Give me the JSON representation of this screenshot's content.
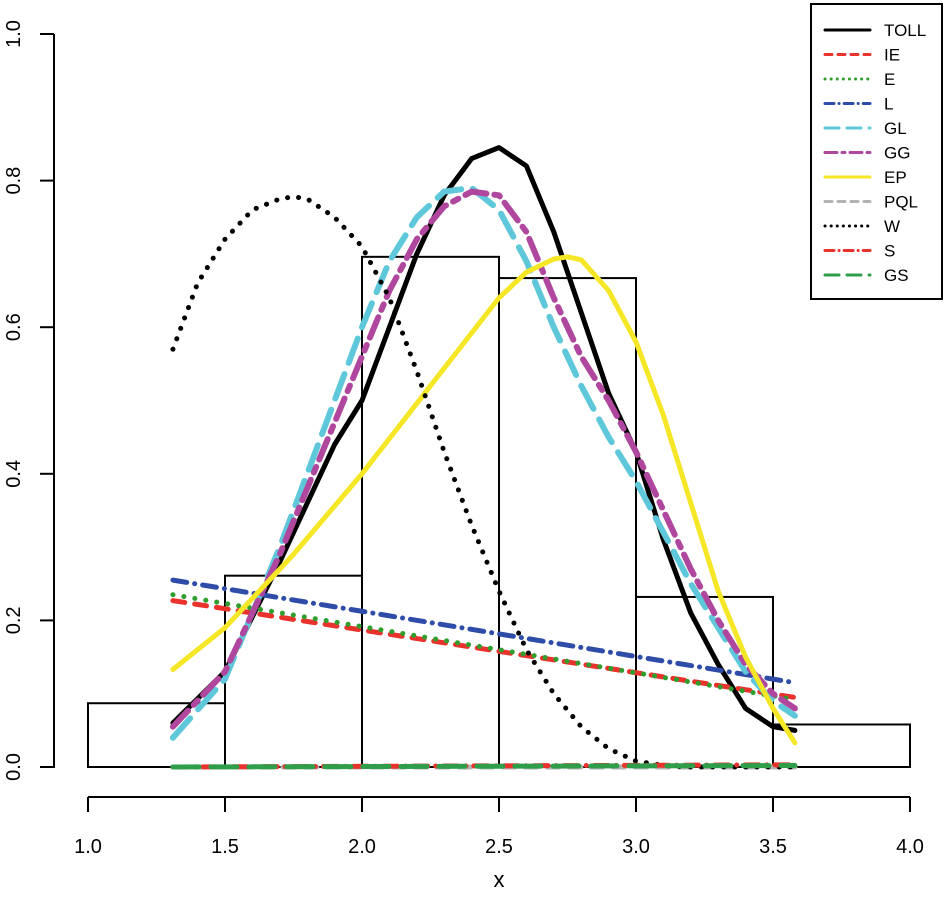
{
  "chart_data": {
    "type": "line",
    "title": "",
    "xlabel": "x",
    "ylabel": "",
    "xlim": [
      1.0,
      4.0
    ],
    "ylim": [
      0.0,
      1.0
    ],
    "x_ticks": [
      "1.0",
      "1.5",
      "2.0",
      "2.5",
      "3.0",
      "3.5",
      "4.0"
    ],
    "y_ticks": [
      "0.0",
      "0.2",
      "0.4",
      "0.6",
      "0.8",
      "1.0"
    ],
    "grid": false,
    "legend_position": "top-right",
    "histogram": {
      "bins": [
        [
          1.0,
          1.5
        ],
        [
          1.5,
          2.0
        ],
        [
          2.0,
          2.5
        ],
        [
          2.5,
          3.0
        ],
        [
          3.0,
          3.5
        ],
        [
          3.5,
          4.0
        ]
      ],
      "values": [
        0.087,
        0.261,
        0.696,
        0.667,
        0.232,
        0.058
      ]
    },
    "series": [
      {
        "name": "TOLL",
        "color": "#000000",
        "dash": "solid",
        "width": 5,
        "x": [
          1.31,
          1.5,
          1.7,
          1.9,
          2.0,
          2.1,
          2.2,
          2.3,
          2.4,
          2.5,
          2.6,
          2.7,
          2.8,
          2.9,
          3.0,
          3.1,
          3.2,
          3.3,
          3.4,
          3.5,
          3.58
        ],
        "y": [
          0.06,
          0.13,
          0.28,
          0.44,
          0.5,
          0.6,
          0.7,
          0.78,
          0.83,
          0.845,
          0.82,
          0.73,
          0.62,
          0.51,
          0.43,
          0.31,
          0.21,
          0.14,
          0.08,
          0.055,
          0.05
        ]
      },
      {
        "name": "IE",
        "color": "#e8322b",
        "dash": "dashed",
        "width": 5,
        "x": [
          1.31,
          3.58
        ],
        "y": [
          0.227,
          0.095
        ]
      },
      {
        "name": "E",
        "color": "#2f9e2f",
        "dash": "dotted",
        "width": 5,
        "x": [
          1.31,
          3.58
        ],
        "y": [
          0.235,
          0.092
        ]
      },
      {
        "name": "L",
        "color": "#2f4da8",
        "dash": "dashdot",
        "width": 5,
        "x": [
          1.31,
          3.58
        ],
        "y": [
          0.255,
          0.115
        ]
      },
      {
        "name": "GL",
        "color": "#5ec8da",
        "dash": "longdash",
        "width": 6,
        "x": [
          1.31,
          1.5,
          1.7,
          1.9,
          2.0,
          2.1,
          2.2,
          2.3,
          2.4,
          2.5,
          2.6,
          2.7,
          2.8,
          2.9,
          3.0,
          3.1,
          3.2,
          3.3,
          3.4,
          3.5,
          3.58
        ],
        "y": [
          0.04,
          0.12,
          0.3,
          0.5,
          0.6,
          0.69,
          0.75,
          0.785,
          0.79,
          0.76,
          0.69,
          0.6,
          0.52,
          0.45,
          0.39,
          0.32,
          0.25,
          0.19,
          0.13,
          0.09,
          0.07
        ]
      },
      {
        "name": "GG",
        "color": "#b0479e",
        "dash": "twodash",
        "width": 6,
        "x": [
          1.31,
          1.5,
          1.7,
          1.9,
          2.0,
          2.1,
          2.2,
          2.3,
          2.4,
          2.5,
          2.6,
          2.7,
          2.8,
          2.9,
          3.0,
          3.1,
          3.2,
          3.3,
          3.4,
          3.5,
          3.58
        ],
        "y": [
          0.055,
          0.13,
          0.29,
          0.47,
          0.56,
          0.65,
          0.72,
          0.765,
          0.785,
          0.78,
          0.73,
          0.64,
          0.56,
          0.5,
          0.43,
          0.35,
          0.27,
          0.2,
          0.14,
          0.1,
          0.08
        ]
      },
      {
        "name": "EP",
        "color": "#f5e626",
        "dash": "solid",
        "width": 5,
        "x": [
          1.31,
          1.5,
          1.75,
          2.0,
          2.25,
          2.5,
          2.6,
          2.7,
          2.75,
          2.8,
          2.9,
          3.0,
          3.1,
          3.2,
          3.3,
          3.4,
          3.5,
          3.58
        ],
        "y": [
          0.133,
          0.19,
          0.29,
          0.4,
          0.52,
          0.64,
          0.675,
          0.693,
          0.696,
          0.692,
          0.65,
          0.58,
          0.48,
          0.36,
          0.24,
          0.15,
          0.08,
          0.033
        ]
      },
      {
        "name": "PQL",
        "color": "#b3b3b3",
        "dash": "dashed",
        "width": 5,
        "x": [
          1.31,
          3.58
        ],
        "y": [
          0.0,
          0.0
        ]
      },
      {
        "name": "W",
        "color": "#000000",
        "dash": "dotted",
        "width": 5,
        "x": [
          1.31,
          1.4,
          1.5,
          1.6,
          1.7,
          1.75,
          1.8,
          1.9,
          2.0,
          2.1,
          2.2,
          2.3,
          2.4,
          2.5,
          2.6,
          2.7,
          2.8,
          2.9,
          3.0,
          3.1,
          3.2,
          3.58
        ],
        "y": [
          0.57,
          0.66,
          0.72,
          0.76,
          0.775,
          0.778,
          0.775,
          0.75,
          0.71,
          0.64,
          0.54,
          0.43,
          0.33,
          0.24,
          0.16,
          0.1,
          0.055,
          0.025,
          0.008,
          0.002,
          0.0,
          0.0
        ]
      },
      {
        "name": "S",
        "color": "#e8322b",
        "dash": "dashdot",
        "width": 5,
        "x": [
          1.31,
          3.58
        ],
        "y": [
          0.0,
          0.003
        ]
      },
      {
        "name": "GS",
        "color": "#2f9e4a",
        "dash": "longdash",
        "width": 5,
        "x": [
          1.31,
          3.58
        ],
        "y": [
          0.0,
          0.002
        ]
      }
    ]
  }
}
